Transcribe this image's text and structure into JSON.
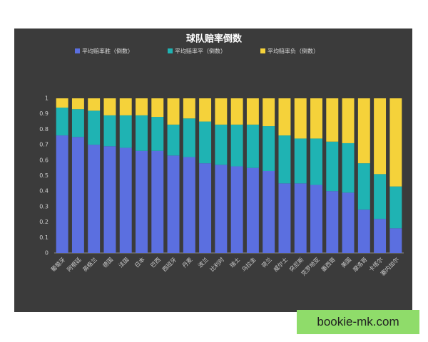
{
  "chart_data": {
    "type": "stacked_bar",
    "title": "球队赔率倒数",
    "categories": [
      "葡萄牙",
      "阿根廷",
      "英格兰",
      "德国",
      "法国",
      "日本",
      "巴西",
      "西班牙",
      "丹麦",
      "波兰",
      "比利时",
      "瑞士",
      "乌拉圭",
      "荷兰",
      "威尔士",
      "突尼斯",
      "克罗地亚",
      "墨西哥",
      "美国",
      "摩洛哥",
      "卡塔尔",
      "塞内加尔"
    ],
    "series": [
      {
        "name": "平均赔率胜（倒数）",
        "color": "#5b6fe0",
        "values": [
          0.76,
          0.75,
          0.7,
          0.69,
          0.68,
          0.66,
          0.66,
          0.63,
          0.62,
          0.58,
          0.57,
          0.56,
          0.55,
          0.53,
          0.45,
          0.45,
          0.44,
          0.4,
          0.39,
          0.28,
          0.22,
          0.16
        ]
      },
      {
        "name": "平均赔率平（倒数）",
        "color": "#1fb3b3",
        "values": [
          0.18,
          0.18,
          0.22,
          0.2,
          0.21,
          0.23,
          0.22,
          0.2,
          0.25,
          0.27,
          0.26,
          0.27,
          0.28,
          0.29,
          0.31,
          0.29,
          0.3,
          0.32,
          0.32,
          0.3,
          0.29,
          0.27
        ]
      },
      {
        "name": "平均赔率负（倒数）",
        "color": "#f5d23a",
        "values": [
          0.06,
          0.07,
          0.08,
          0.11,
          0.11,
          0.11,
          0.12,
          0.17,
          0.13,
          0.15,
          0.17,
          0.17,
          0.17,
          0.18,
          0.24,
          0.26,
          0.26,
          0.28,
          0.29,
          0.42,
          0.49,
          0.57
        ]
      }
    ],
    "ylim": [
      0,
      1
    ],
    "yticks": [
      0,
      0.1,
      0.2,
      0.3,
      0.4,
      0.5,
      0.6,
      0.7,
      0.8,
      0.9,
      1
    ],
    "legend": "top"
  },
  "watermark": "bookie-mk.com"
}
